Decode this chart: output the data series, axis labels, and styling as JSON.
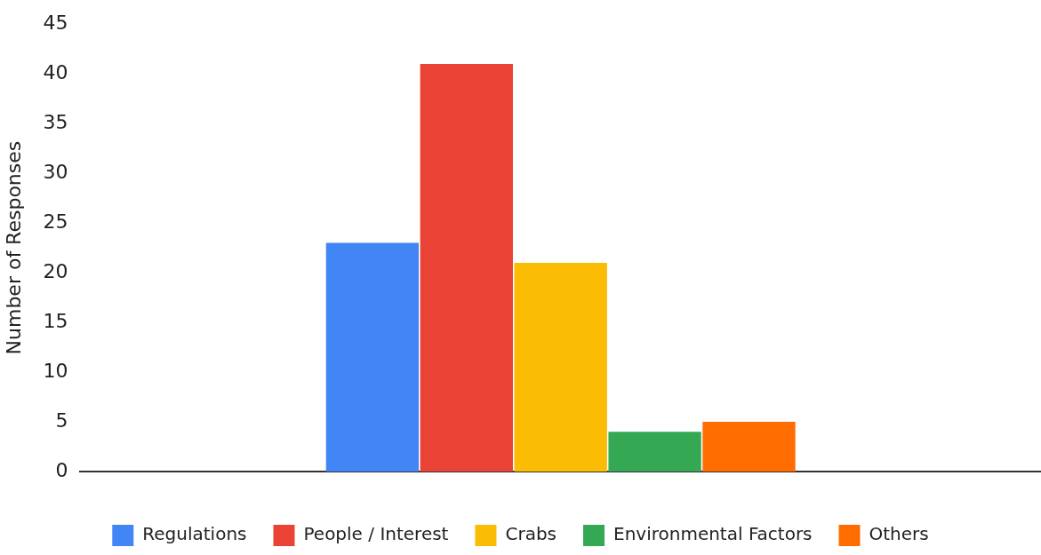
{
  "chart_data": {
    "type": "bar",
    "ylabel": "Number of Responses",
    "categories": [
      null
    ],
    "series": [
      {
        "name": "Regulations",
        "color": "#4285f4",
        "values": [
          23
        ]
      },
      {
        "name": "People / Interest",
        "color": "#ea4335",
        "values": [
          41
        ]
      },
      {
        "name": "Crabs",
        "color": "#fbbc04",
        "values": [
          21
        ]
      },
      {
        "name": "Environmental Factors",
        "color": "#34a853",
        "values": [
          4
        ]
      },
      {
        "name": "Others",
        "color": "#ff6d01",
        "values": [
          5
        ]
      }
    ],
    "ylim": [
      0,
      45
    ],
    "yticks": [
      0,
      5,
      10,
      15,
      20,
      25,
      30,
      35,
      40,
      45
    ],
    "grid": false,
    "legend": "bottom"
  }
}
